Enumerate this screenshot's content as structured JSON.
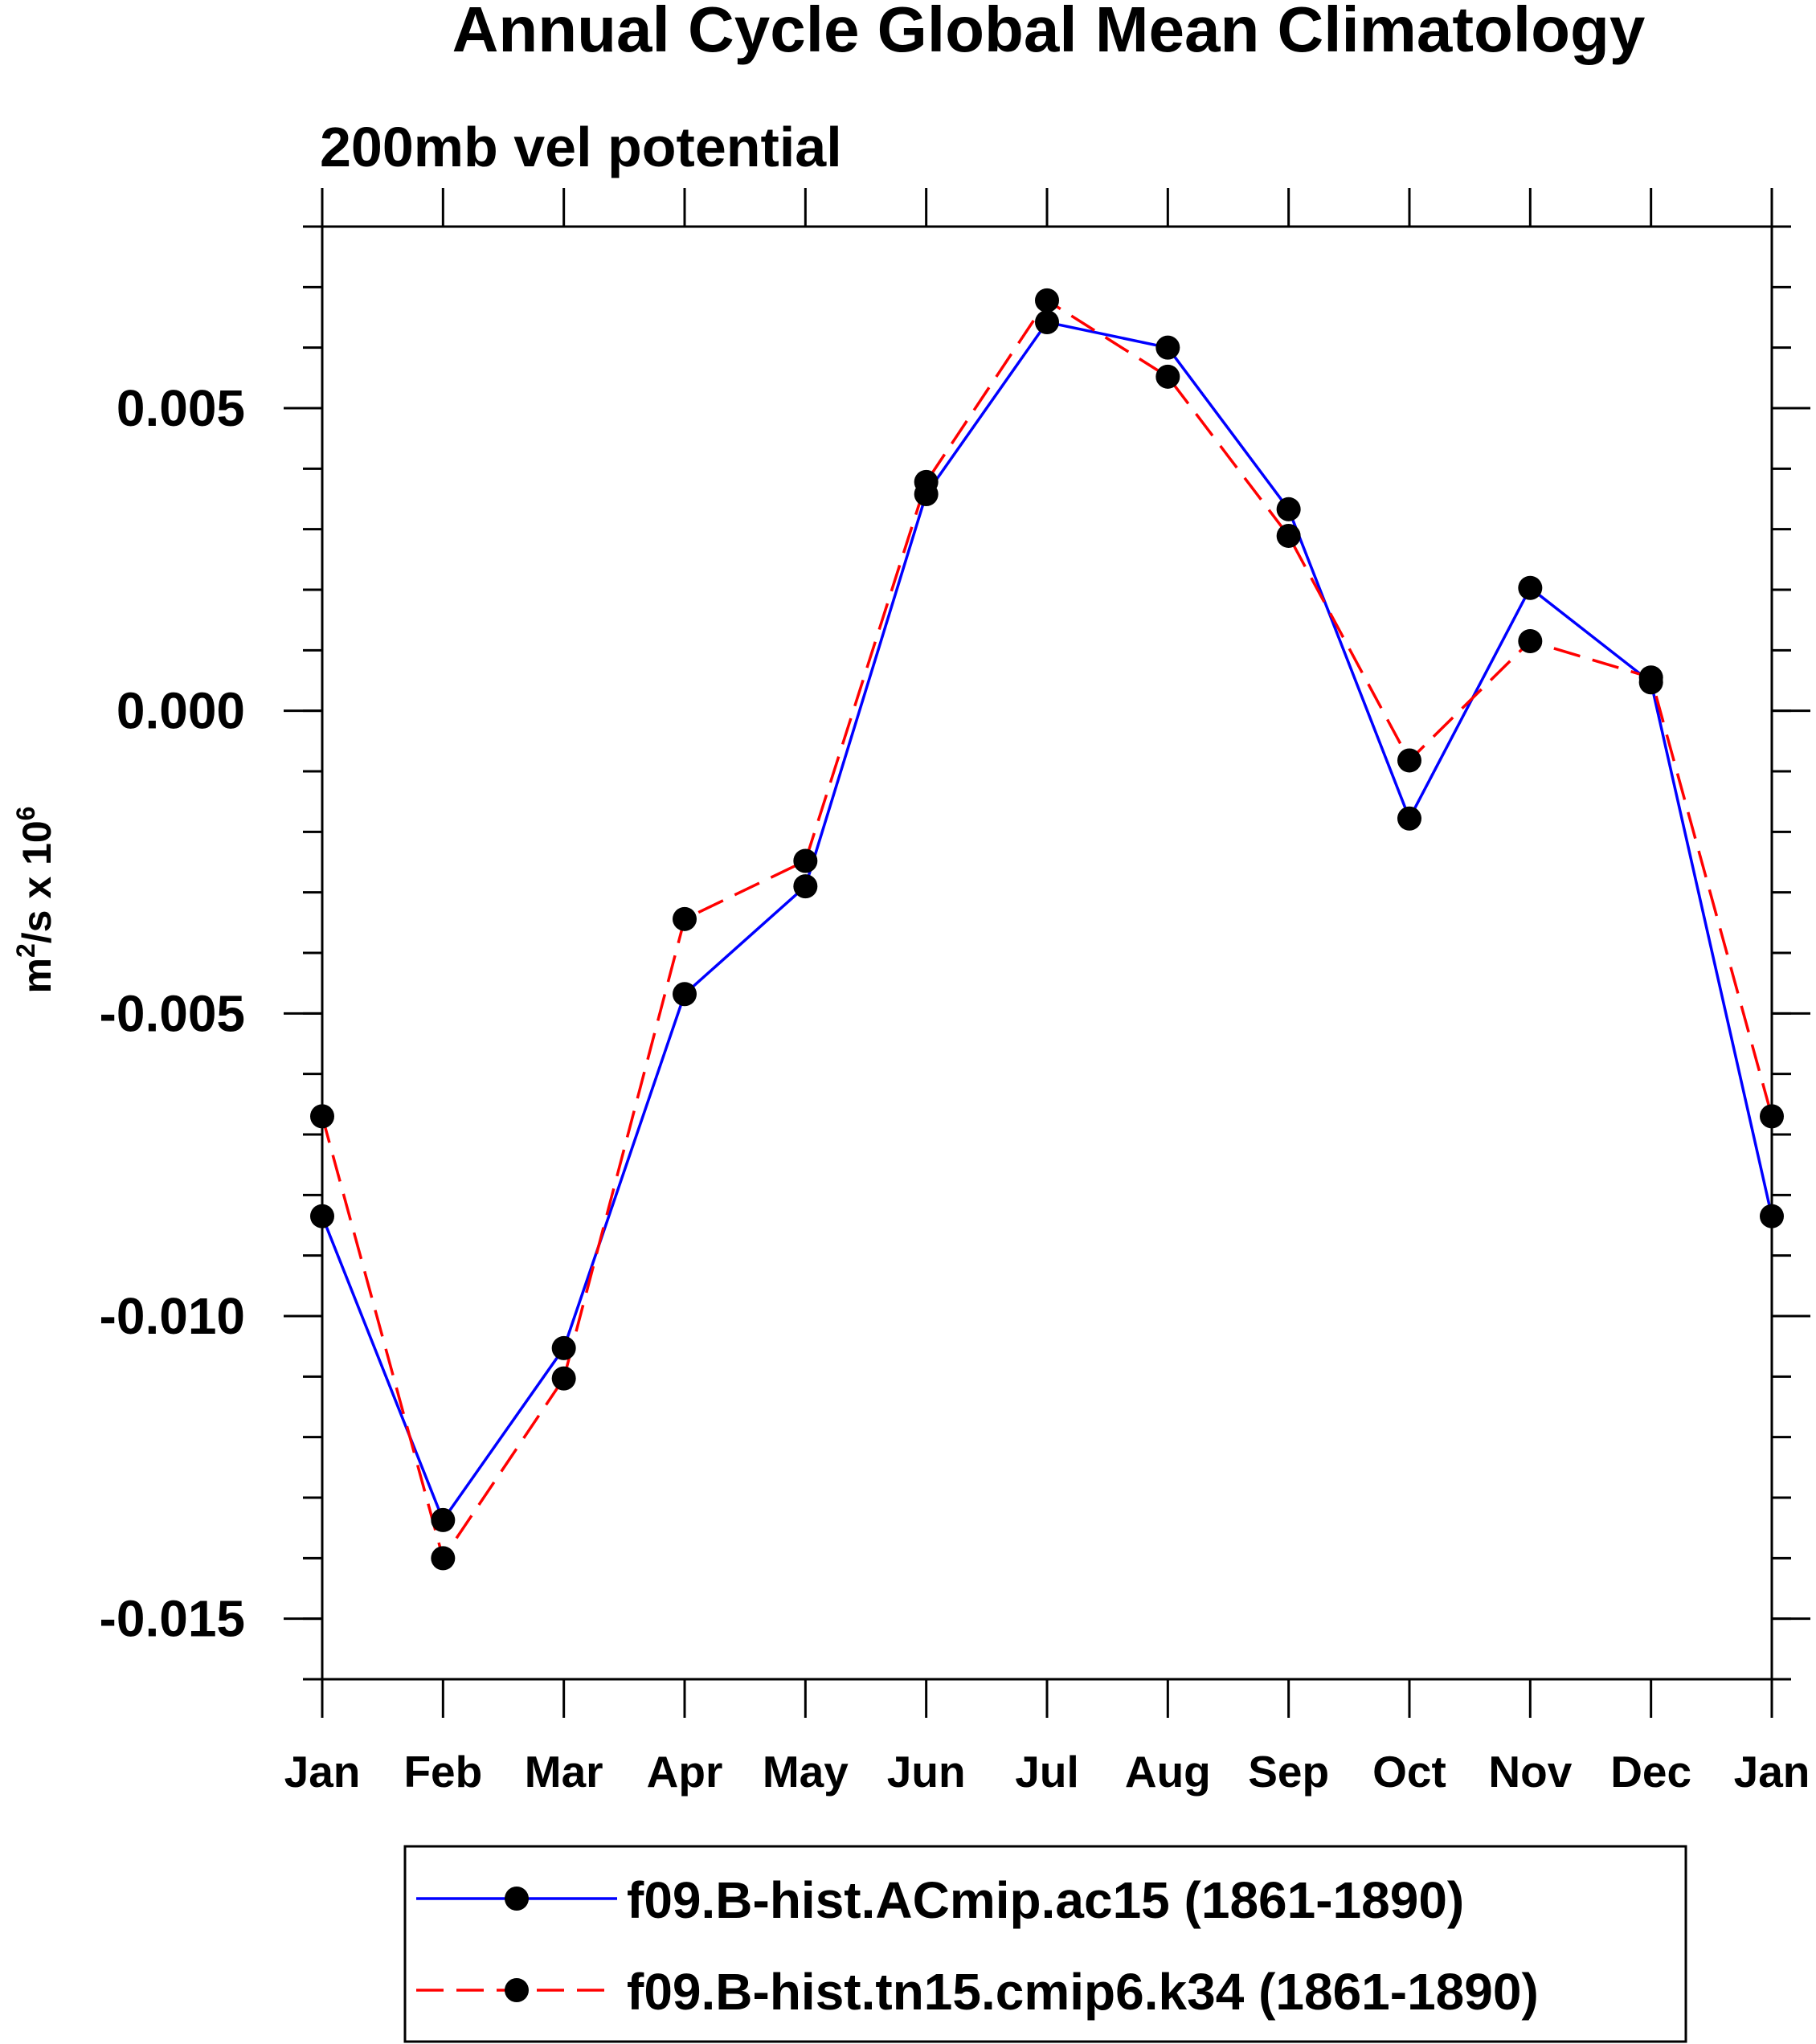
{
  "chart_data": {
    "type": "line",
    "title": "Annual Cycle Global Mean Climatology",
    "subtitle": "200mb vel potential",
    "xlabel": "",
    "ylabel": "m²/s x 10⁶",
    "ylabel_parts": {
      "base": "m",
      "sup1": "2",
      "mid": "/s x 10",
      "sup2": "6"
    },
    "categories": [
      "Jan",
      "Feb",
      "Mar",
      "Apr",
      "May",
      "Jun",
      "Jul",
      "Aug",
      "Sep",
      "Oct",
      "Nov",
      "Dec",
      "Jan"
    ],
    "yticks": [
      0.005,
      0.0,
      -0.005,
      -0.01,
      -0.015
    ],
    "ytick_labels": [
      "0.005",
      "0.000",
      "-0.005",
      "-0.010",
      "-0.015"
    ],
    "yminor_step": 0.001,
    "ylim": [
      -0.016,
      0.008
    ],
    "grid": false,
    "legend_position": "bottom",
    "series": [
      {
        "name": "f09.B-hist.ACmip.ac15 (1861-1890)",
        "color": "#0000ff",
        "style": "solid",
        "marker": "filled-circle",
        "values": [
          -0.00835,
          -0.01337,
          -0.01053,
          -0.00468,
          -0.0029,
          0.00358,
          0.00642,
          0.006,
          0.00333,
          -0.00178,
          0.00203,
          0.00047,
          -0.00835
        ]
      },
      {
        "name": "f09.B-hist.tn15.cmip6.k34 (1861-1890)",
        "color": "#ff0000",
        "style": "dashed",
        "marker": "filled-circle",
        "values": [
          -0.0067,
          -0.014,
          -0.01103,
          -0.00344,
          -0.00248,
          0.00378,
          0.00678,
          0.00552,
          0.00289,
          -0.00082,
          0.00115,
          0.00055,
          -0.0067
        ]
      }
    ]
  }
}
